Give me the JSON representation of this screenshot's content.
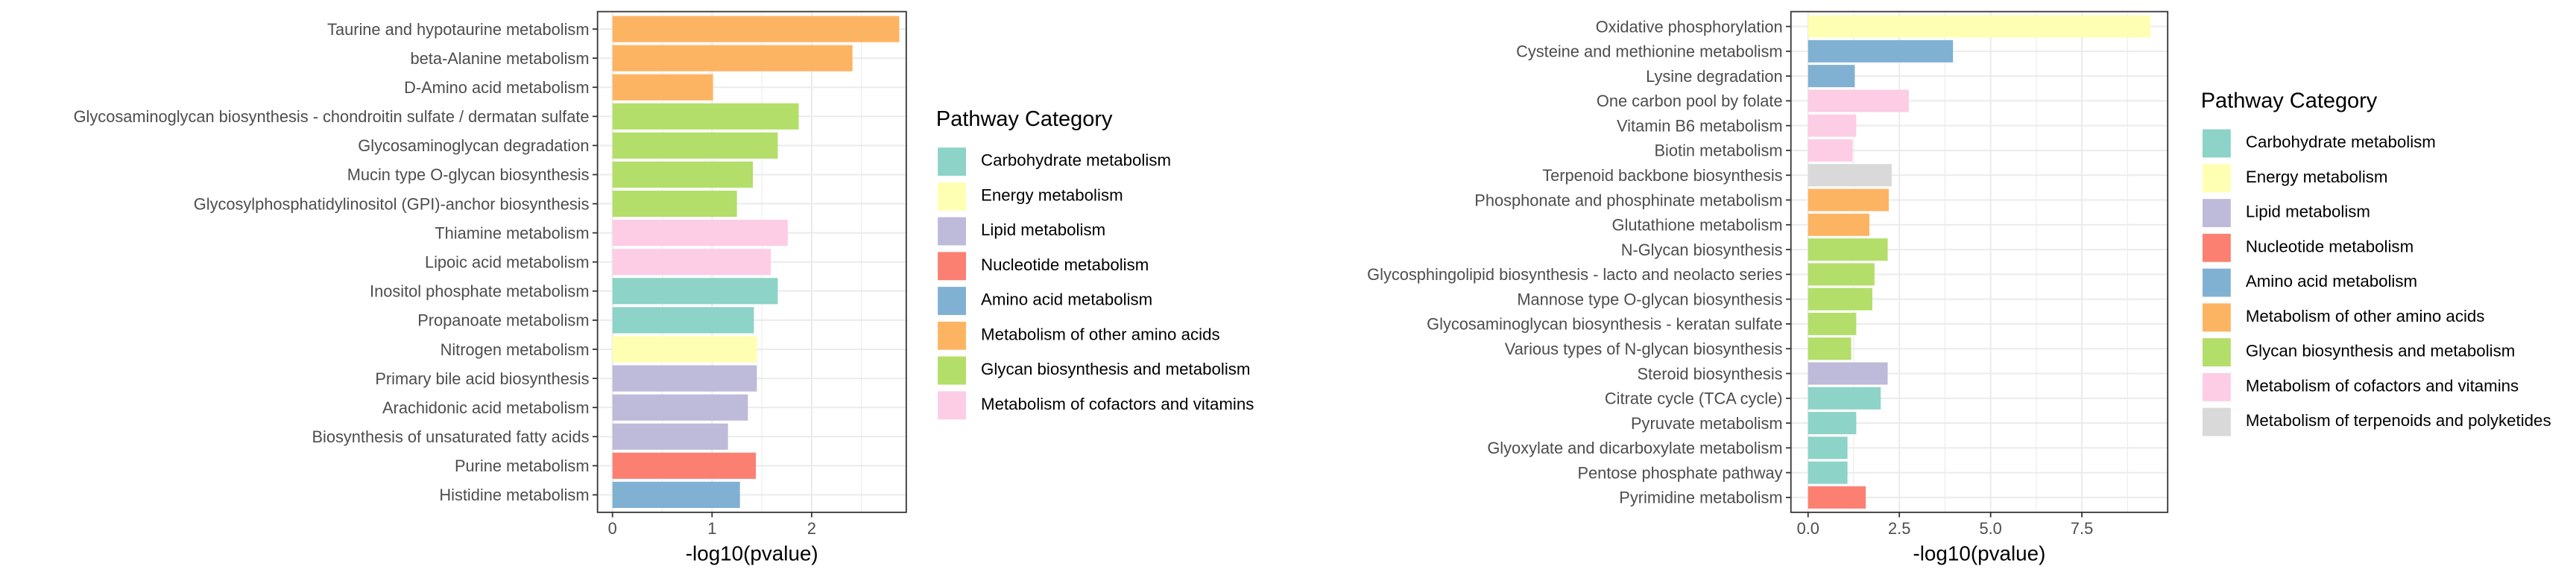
{
  "colors": {
    "Carbohydrate metabolism": "#8DD3C7",
    "Energy metabolism": "#FFFFB3",
    "Lipid metabolism": "#BEBADA",
    "Nucleotide metabolism": "#FB8072",
    "Amino acid metabolism": "#80B1D3",
    "Metabolism of other amino acids": "#FDB462",
    "Glycan biosynthesis and metabolism": "#B3DE69",
    "Metabolism of cofactors and vitamins": "#FCCDE5",
    "Metabolism of terpenoids and polyketides": "#D9D9D9"
  },
  "legends": [
    {
      "title": "Pathway Category",
      "items": [
        "Carbohydrate metabolism",
        "Energy metabolism",
        "Lipid metabolism",
        "Nucleotide metabolism",
        "Amino acid metabolism",
        "Metabolism of other amino acids",
        "Glycan biosynthesis and metabolism",
        "Metabolism of cofactors and vitamins"
      ]
    },
    {
      "title": "Pathway Category",
      "items": [
        "Carbohydrate metabolism",
        "Energy metabolism",
        "Lipid metabolism",
        "Nucleotide metabolism",
        "Amino acid metabolism",
        "Metabolism of other amino acids",
        "Glycan biosynthesis and metabolism",
        "Metabolism of cofactors and vitamins",
        "Metabolism of terpenoids and polyketides"
      ]
    }
  ],
  "chart_data": [
    {
      "type": "bar",
      "orientation": "horizontal",
      "xlabel": "-log10(pvalue)",
      "ylabel": "",
      "xlim": [
        -0.15,
        2.95
      ],
      "xticks": [
        0,
        1,
        2
      ],
      "grid": true,
      "legend_position": "right",
      "categories": [
        "Taurine and hypotaurine metabolism",
        "beta-Alanine metabolism",
        "D-Amino acid metabolism",
        "Glycosaminoglycan biosynthesis - chondroitin sulfate / dermatan sulfate",
        "Glycosaminoglycan degradation",
        "Mucin type O-glycan biosynthesis",
        "Glycosylphosphatidylinositol (GPI)-anchor biosynthesis",
        "Thiamine metabolism",
        "Lipoic acid metabolism",
        "Inositol phosphate metabolism",
        "Propanoate metabolism",
        "Nitrogen metabolism",
        "Primary bile acid biosynthesis",
        "Arachidonic acid metabolism",
        "Biosynthesis of unsaturated fatty acids",
        "Purine metabolism",
        "Histidine metabolism"
      ],
      "values": [
        2.88,
        2.41,
        1.01,
        1.87,
        1.66,
        1.41,
        1.25,
        1.76,
        1.59,
        1.66,
        1.42,
        1.45,
        1.45,
        1.36,
        1.16,
        1.44,
        1.28
      ],
      "groups": [
        "Metabolism of other amino acids",
        "Metabolism of other amino acids",
        "Metabolism of other amino acids",
        "Glycan biosynthesis and metabolism",
        "Glycan biosynthesis and metabolism",
        "Glycan biosynthesis and metabolism",
        "Glycan biosynthesis and metabolism",
        "Metabolism of cofactors and vitamins",
        "Metabolism of cofactors and vitamins",
        "Carbohydrate metabolism",
        "Carbohydrate metabolism",
        "Energy metabolism",
        "Lipid metabolism",
        "Lipid metabolism",
        "Lipid metabolism",
        "Nucleotide metabolism",
        "Amino acid metabolism"
      ]
    },
    {
      "type": "bar",
      "orientation": "horizontal",
      "xlabel": "-log10(pvalue)",
      "ylabel": "",
      "xlim": [
        -0.47,
        9.85
      ],
      "xticks": [
        0,
        2.5,
        5,
        7.5
      ],
      "xtick_labels": [
        "0.0",
        "2.5",
        "5.0",
        "7.5"
      ],
      "grid": true,
      "legend_position": "right",
      "categories": [
        "Oxidative phosphorylation",
        "Cysteine and methionine metabolism",
        "Lysine degradation",
        "One carbon pool by folate",
        "Vitamin B6 metabolism",
        "Biotin metabolism",
        "Terpenoid backbone biosynthesis",
        "Phosphonate and phosphinate metabolism",
        "Glutathione metabolism",
        "N-Glycan biosynthesis",
        "Glycosphingolipid biosynthesis - lacto and neolacto series",
        "Mannose type O-glycan biosynthesis",
        "Glycosaminoglycan biosynthesis - keratan sulfate",
        "Various types of N-glycan biosynthesis",
        "Steroid biosynthesis",
        "Citrate cycle (TCA cycle)",
        "Pyruvate metabolism",
        "Glyoxylate and dicarboxylate metabolism",
        "Pentose phosphate pathway",
        "Pyrimidine metabolism"
      ],
      "values": [
        9.38,
        3.97,
        1.28,
        2.76,
        1.32,
        1.22,
        2.29,
        2.21,
        1.68,
        2.18,
        1.82,
        1.76,
        1.32,
        1.18,
        2.18,
        1.99,
        1.32,
        1.08,
        1.08,
        1.58
      ],
      "groups": [
        "Energy metabolism",
        "Amino acid metabolism",
        "Amino acid metabolism",
        "Metabolism of cofactors and vitamins",
        "Metabolism of cofactors and vitamins",
        "Metabolism of cofactors and vitamins",
        "Metabolism of terpenoids and polyketides",
        "Metabolism of other amino acids",
        "Metabolism of other amino acids",
        "Glycan biosynthesis and metabolism",
        "Glycan biosynthesis and metabolism",
        "Glycan biosynthesis and metabolism",
        "Glycan biosynthesis and metabolism",
        "Glycan biosynthesis and metabolism",
        "Lipid metabolism",
        "Carbohydrate metabolism",
        "Carbohydrate metabolism",
        "Carbohydrate metabolism",
        "Carbohydrate metabolism",
        "Nucleotide metabolism"
      ]
    }
  ]
}
